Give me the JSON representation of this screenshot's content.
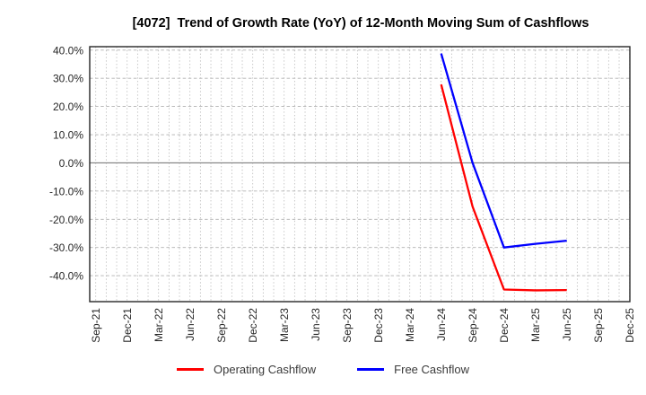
{
  "chart_data": {
    "type": "line",
    "title": "[4072]  Trend of Growth Rate (YoY) of 12-Month Moving Sum of Cashflows",
    "xlabel": "",
    "ylabel": "",
    "y_ticks": [
      40,
      30,
      20,
      10,
      0,
      -10,
      -20,
      -30,
      -40
    ],
    "y_tick_suffix": "%",
    "y_tick_decimals": 1,
    "ylim": [
      -49.2,
      41.2
    ],
    "x_tick_labels": [
      "Sep-21",
      "Dec-21",
      "Mar-22",
      "Jun-22",
      "Sep-22",
      "Dec-22",
      "Mar-23",
      "Jun-23",
      "Sep-23",
      "Dec-23",
      "Mar-24",
      "Jun-24",
      "Sep-24",
      "Dec-24",
      "Mar-25",
      "Jun-25",
      "Sep-25",
      "Dec-25"
    ],
    "x_months_total": 52,
    "x_tick_every_months": 3,
    "grid": {
      "horizontal": "dashed",
      "vertical": "dotted-monthly",
      "zero_line": "solid"
    },
    "legend_position": "bottom-center",
    "series": [
      {
        "name": "Operating Cashflow",
        "color": "#ff0000",
        "x_labels": [
          "Jun-24",
          "Sep-24",
          "Dec-24",
          "Mar-25",
          "Jun-25"
        ],
        "month_index": [
          33,
          36,
          39,
          42,
          45
        ],
        "values": [
          27.8,
          -15.5,
          -44.9,
          -45.2,
          -45.1
        ]
      },
      {
        "name": "Free Cashflow",
        "color": "#0000ff",
        "x_labels": [
          "Jun-24",
          "Sep-24",
          "Dec-24",
          "Mar-25",
          "Jun-25"
        ],
        "month_index": [
          33,
          36,
          39,
          42,
          45
        ],
        "values": [
          38.8,
          0.0,
          -30.0,
          -28.7,
          -27.6
        ]
      }
    ]
  }
}
